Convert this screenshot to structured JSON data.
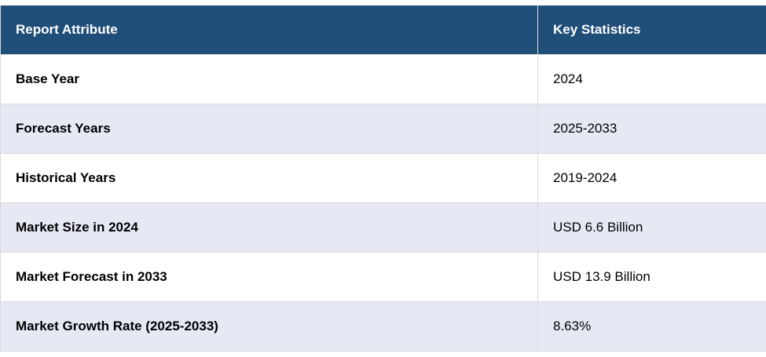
{
  "table": {
    "headers": [
      "Report Attribute",
      "Key Statistics"
    ],
    "rows": [
      {
        "attribute": "Base Year",
        "value": "2024"
      },
      {
        "attribute": "Forecast Years",
        "value": "2025-2033"
      },
      {
        "attribute": "Historical Years",
        "value": "2019-2024"
      },
      {
        "attribute": "Market Size in 2024",
        "value": "USD 6.6 Billion"
      },
      {
        "attribute": "Market Forecast in 2033",
        "value": "USD 13.9 Billion"
      },
      {
        "attribute": "Market Growth Rate (2025-2033)",
        "value": "8.63%"
      }
    ]
  },
  "colors": {
    "header_bg": "#1f4e79",
    "header_text": "#ffffff",
    "row_alt_bg": "#e6e9f4",
    "row_bg": "#ffffff",
    "border": "#d9d9d9"
  }
}
